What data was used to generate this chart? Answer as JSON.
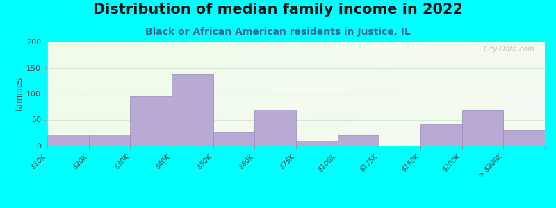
{
  "title": "Distribution of median family income in 2022",
  "subtitle": "Black or African American residents in Justice, IL",
  "ylabel": "families",
  "categories": [
    "$10K",
    "$20K",
    "$30K",
    "$40K",
    "$50K",
    "$60K",
    "$75K",
    "$100K",
    "$125K",
    "$150K",
    "$200K",
    "> $200K"
  ],
  "values": [
    22,
    22,
    95,
    138,
    25,
    70,
    10,
    20,
    0,
    42,
    68,
    30
  ],
  "bar_color": "#b8aad4",
  "bar_edge_color": "#9988bb",
  "ylim": [
    0,
    200
  ],
  "yticks": [
    0,
    50,
    100,
    150,
    200
  ],
  "bg_color_top": "#e8f5e0",
  "bg_color_bottom": "#f8fff5",
  "bg_color_right": "#e0f0f8",
  "outer_bg": "#00ffff",
  "title_fontsize": 15,
  "subtitle_fontsize": 10,
  "ylabel_fontsize": 9,
  "watermark": "City-Data.com",
  "grid_color": "#d8e8d0",
  "spine_color": "#bbbbbb"
}
